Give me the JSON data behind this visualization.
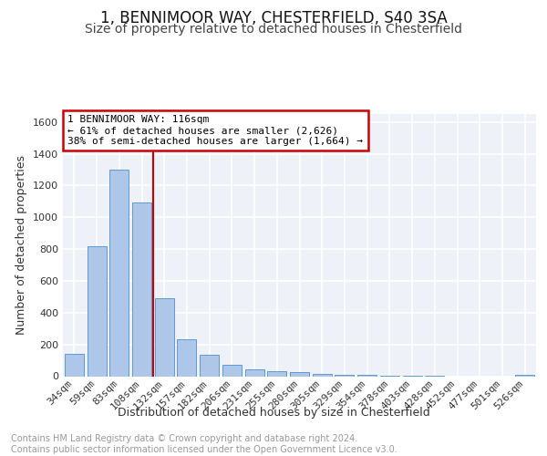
{
  "title1": "1, BENNIMOOR WAY, CHESTERFIELD, S40 3SA",
  "title2": "Size of property relative to detached houses in Chesterfield",
  "xlabel": "Distribution of detached houses by size in Chesterfield",
  "ylabel": "Number of detached properties",
  "categories": [
    "34sqm",
    "59sqm",
    "83sqm",
    "108sqm",
    "132sqm",
    "157sqm",
    "182sqm",
    "206sqm",
    "231sqm",
    "255sqm",
    "280sqm",
    "305sqm",
    "329sqm",
    "354sqm",
    "378sqm",
    "403sqm",
    "428sqm",
    "452sqm",
    "477sqm",
    "501sqm",
    "526sqm"
  ],
  "values": [
    140,
    820,
    1300,
    1095,
    490,
    235,
    135,
    70,
    45,
    30,
    25,
    15,
    10,
    8,
    5,
    3,
    2,
    0,
    0,
    0,
    10
  ],
  "bar_color": "#aec6e8",
  "bar_edge_color": "#5b9bd5",
  "vline_x_index": 3.5,
  "vline_color": "#cc0000",
  "annotation_text": "1 BENNIMOOR WAY: 116sqm\n← 61% of detached houses are smaller (2,626)\n38% of semi-detached houses are larger (1,664) →",
  "annotation_box_color": "#ffffff",
  "annotation_box_edge_color": "#cc0000",
  "ylim": [
    0,
    1650
  ],
  "yticks": [
    0,
    200,
    400,
    600,
    800,
    1000,
    1200,
    1400,
    1600
  ],
  "footer_text": "Contains HM Land Registry data © Crown copyright and database right 2024.\nContains public sector information licensed under the Open Government Licence v3.0.",
  "bg_color": "#ffffff",
  "plot_bg_color": "#eef2f8",
  "grid_color": "#ffffff",
  "title1_fontsize": 12,
  "title2_fontsize": 10,
  "xlabel_fontsize": 9,
  "ylabel_fontsize": 9,
  "tick_fontsize": 8,
  "footer_fontsize": 7,
  "annot_fontsize": 8
}
